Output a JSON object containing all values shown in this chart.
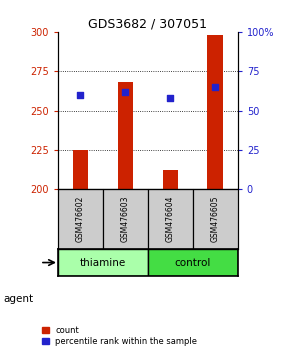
{
  "title": "GDS3682 / 307051",
  "samples": [
    "GSM476602",
    "GSM476603",
    "GSM476604",
    "GSM476605"
  ],
  "count_values": [
    225,
    268,
    212,
    298
  ],
  "count_baseline": 200,
  "percentile_values": [
    60,
    62,
    58,
    65
  ],
  "ylim_left": [
    200,
    300
  ],
  "ylim_right": [
    0,
    100
  ],
  "yticks_left": [
    200,
    225,
    250,
    275,
    300
  ],
  "yticks_right": [
    0,
    25,
    50,
    75,
    100
  ],
  "ytick_labels_right": [
    "0",
    "25",
    "50",
    "75",
    "100%"
  ],
  "bar_color": "#cc2200",
  "dot_color": "#2222cc",
  "left_tick_color": "#cc2200",
  "right_tick_color": "#2222cc",
  "groups": [
    {
      "label": "thiamine",
      "samples": [
        0,
        1
      ],
      "color": "#aaffaa"
    },
    {
      "label": "control",
      "samples": [
        2,
        3
      ],
      "color": "#44dd44"
    }
  ],
  "agent_label": "agent",
  "legend_count_label": "count",
  "legend_pct_label": "percentile rank within the sample",
  "sample_box_color": "#cccccc",
  "bar_width": 0.35,
  "dot_size": 25,
  "figsize": [
    2.9,
    3.54
  ],
  "dpi": 100
}
